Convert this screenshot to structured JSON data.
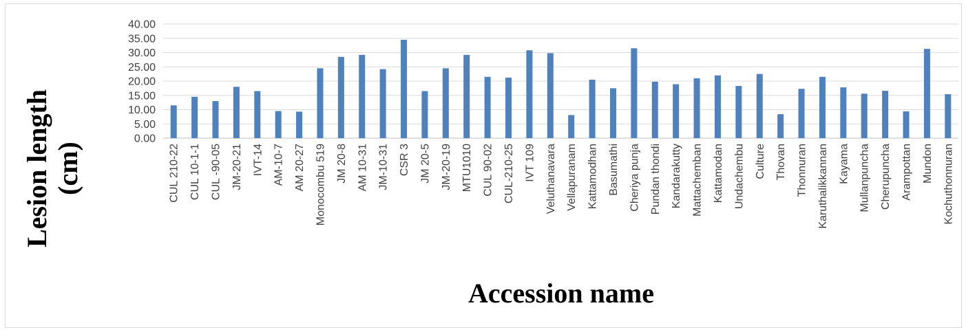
{
  "chart_data": {
    "type": "bar",
    "title": "",
    "xlabel": "Accession name",
    "ylabel_lines": [
      "Lesion length",
      "(cm)"
    ],
    "ylim": [
      0,
      40
    ],
    "yticks": [
      "0.00",
      "5.00",
      "10.00",
      "15.00",
      "20.00",
      "25.00",
      "30.00",
      "35.00",
      "40.00"
    ],
    "grid": true,
    "bar_color": "#4f81bd",
    "categories": [
      "CUL 210-22",
      "CUL 10-1-1",
      "CUL -90-05",
      "JM-20-21",
      "IVT-14",
      "AM-10-7",
      "AM 20-27",
      "Monocombu 519",
      "JM 20-8",
      "AM 10-31",
      "JM-10-31",
      "CSR 3",
      "JM 20-5",
      "JM-20-19",
      "MTU1010",
      "CUL 90-02",
      "CUL-210-25",
      "IVT 109",
      "Veluthanavara",
      "Vellapuranam",
      "Kattamodhan",
      "Basumathi",
      "Cheriya punja",
      "Pundan thondi",
      "Kandarakutty",
      "Mattachemban",
      "Kattamodan",
      "Undachembu",
      "Culture",
      "Thovan",
      "Thonnuran",
      "Karuthalikkannan",
      "Kayama",
      "Mullanpuncha",
      "Cherupuncha",
      "Arampottan",
      "Mundon",
      "Kochuthonnuran"
    ],
    "values": [
      11.5,
      14.5,
      13.0,
      18.0,
      16.5,
      9.5,
      9.3,
      24.5,
      28.5,
      29.2,
      24.2,
      34.5,
      16.5,
      24.5,
      29.2,
      21.5,
      21.2,
      30.8,
      29.8,
      8.1,
      20.5,
      17.5,
      31.5,
      19.8,
      18.9,
      21.0,
      22.0,
      18.3,
      22.5,
      8.4,
      17.3,
      21.5,
      17.8,
      15.6,
      16.6,
      9.4,
      31.3,
      15.4
    ]
  }
}
